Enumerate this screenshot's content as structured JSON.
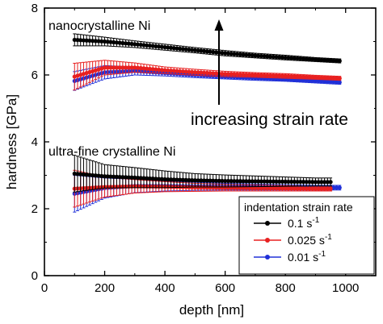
{
  "chart_data": {
    "type": "scatter",
    "xlabel": "depth [nm]",
    "ylabel": "hardness [GPa]",
    "xlim": [
      0,
      1100
    ],
    "ylim": [
      0,
      8
    ],
    "xticks": [
      0,
      200,
      400,
      600,
      800,
      1000
    ],
    "yticks": [
      0,
      2,
      4,
      6,
      8
    ],
    "grid": false,
    "legend": {
      "title": "indentation strain rate",
      "position": "bottom-right",
      "entries": [
        {
          "label_main": "0.1 s",
          "label_sup": "-1",
          "series": "0.1"
        },
        {
          "label_main": "0.025 s",
          "label_sup": "-1",
          "series": "0.025"
        },
        {
          "label_main": "0.01 s",
          "label_sup": "-1",
          "series": "0.01"
        }
      ]
    },
    "annotations": {
      "nano": "nanocrystalline Ni",
      "ufc": "ultra-fine crystalline Ni",
      "rate": "increasing strain rate"
    },
    "series": [
      {
        "group": "nanocrystalline Ni",
        "name": "0.1 s-1",
        "color": "#000000",
        "x": [
          100,
          200,
          300,
          400,
          500,
          600,
          700,
          800,
          900,
          980
        ],
        "y": [
          7.05,
          7.0,
          6.92,
          6.83,
          6.74,
          6.65,
          6.58,
          6.52,
          6.46,
          6.42
        ],
        "err": [
          0.18,
          0.13,
          0.1,
          0.09,
          0.08,
          0.08,
          0.07,
          0.07,
          0.06,
          0.06
        ]
      },
      {
        "group": "nanocrystalline Ni",
        "name": "0.025 s-1",
        "color": "#e82020",
        "x": [
          100,
          200,
          300,
          400,
          500,
          600,
          700,
          800,
          900,
          980
        ],
        "y": [
          5.95,
          6.22,
          6.22,
          6.14,
          6.08,
          6.03,
          6.0,
          5.97,
          5.93,
          5.9
        ],
        "err": [
          0.4,
          0.22,
          0.14,
          0.1,
          0.09,
          0.08,
          0.07,
          0.07,
          0.06,
          0.06
        ]
      },
      {
        "group": "nanocrystalline Ni",
        "name": "0.01 s-1",
        "color": "#2030d8",
        "x": [
          100,
          200,
          300,
          400,
          500,
          600,
          700,
          800,
          900,
          980
        ],
        "y": [
          5.82,
          6.08,
          6.12,
          6.06,
          6.0,
          5.95,
          5.91,
          5.87,
          5.82,
          5.78
        ],
        "err": [
          0.28,
          0.2,
          0.12,
          0.09,
          0.08,
          0.07,
          0.07,
          0.06,
          0.06,
          0.06
        ]
      },
      {
        "group": "ultra-fine crystalline Ni",
        "name": "0.1 s-1",
        "color": "#000000",
        "x": [
          100,
          200,
          300,
          400,
          500,
          600,
          700,
          800,
          900,
          950
        ],
        "y": [
          3.05,
          2.97,
          2.93,
          2.88,
          2.85,
          2.83,
          2.82,
          2.81,
          2.8,
          2.8
        ],
        "err": [
          0.55,
          0.35,
          0.3,
          0.25,
          0.2,
          0.18,
          0.16,
          0.14,
          0.12,
          0.12
        ]
      },
      {
        "group": "ultra-fine crystalline Ni",
        "name": "0.025 s-1",
        "color": "#e82020",
        "x": [
          100,
          200,
          300,
          400,
          500,
          600,
          700,
          800,
          900,
          950
        ],
        "y": [
          2.6,
          2.65,
          2.67,
          2.66,
          2.64,
          2.63,
          2.62,
          2.61,
          2.6,
          2.6
        ],
        "err": [
          0.55,
          0.3,
          0.2,
          0.15,
          0.12,
          0.1,
          0.09,
          0.08,
          0.07,
          0.07
        ]
      },
      {
        "group": "ultra-fine crystalline Ni",
        "name": "0.01 s-1",
        "color": "#2030d8",
        "x": [
          100,
          200,
          300,
          400,
          500,
          600,
          700,
          800,
          900,
          980
        ],
        "y": [
          2.45,
          2.62,
          2.68,
          2.68,
          2.67,
          2.66,
          2.65,
          2.64,
          2.63,
          2.63
        ],
        "err": [
          0.55,
          0.3,
          0.2,
          0.15,
          0.12,
          0.1,
          0.09,
          0.08,
          0.07,
          0.07
        ]
      }
    ]
  }
}
